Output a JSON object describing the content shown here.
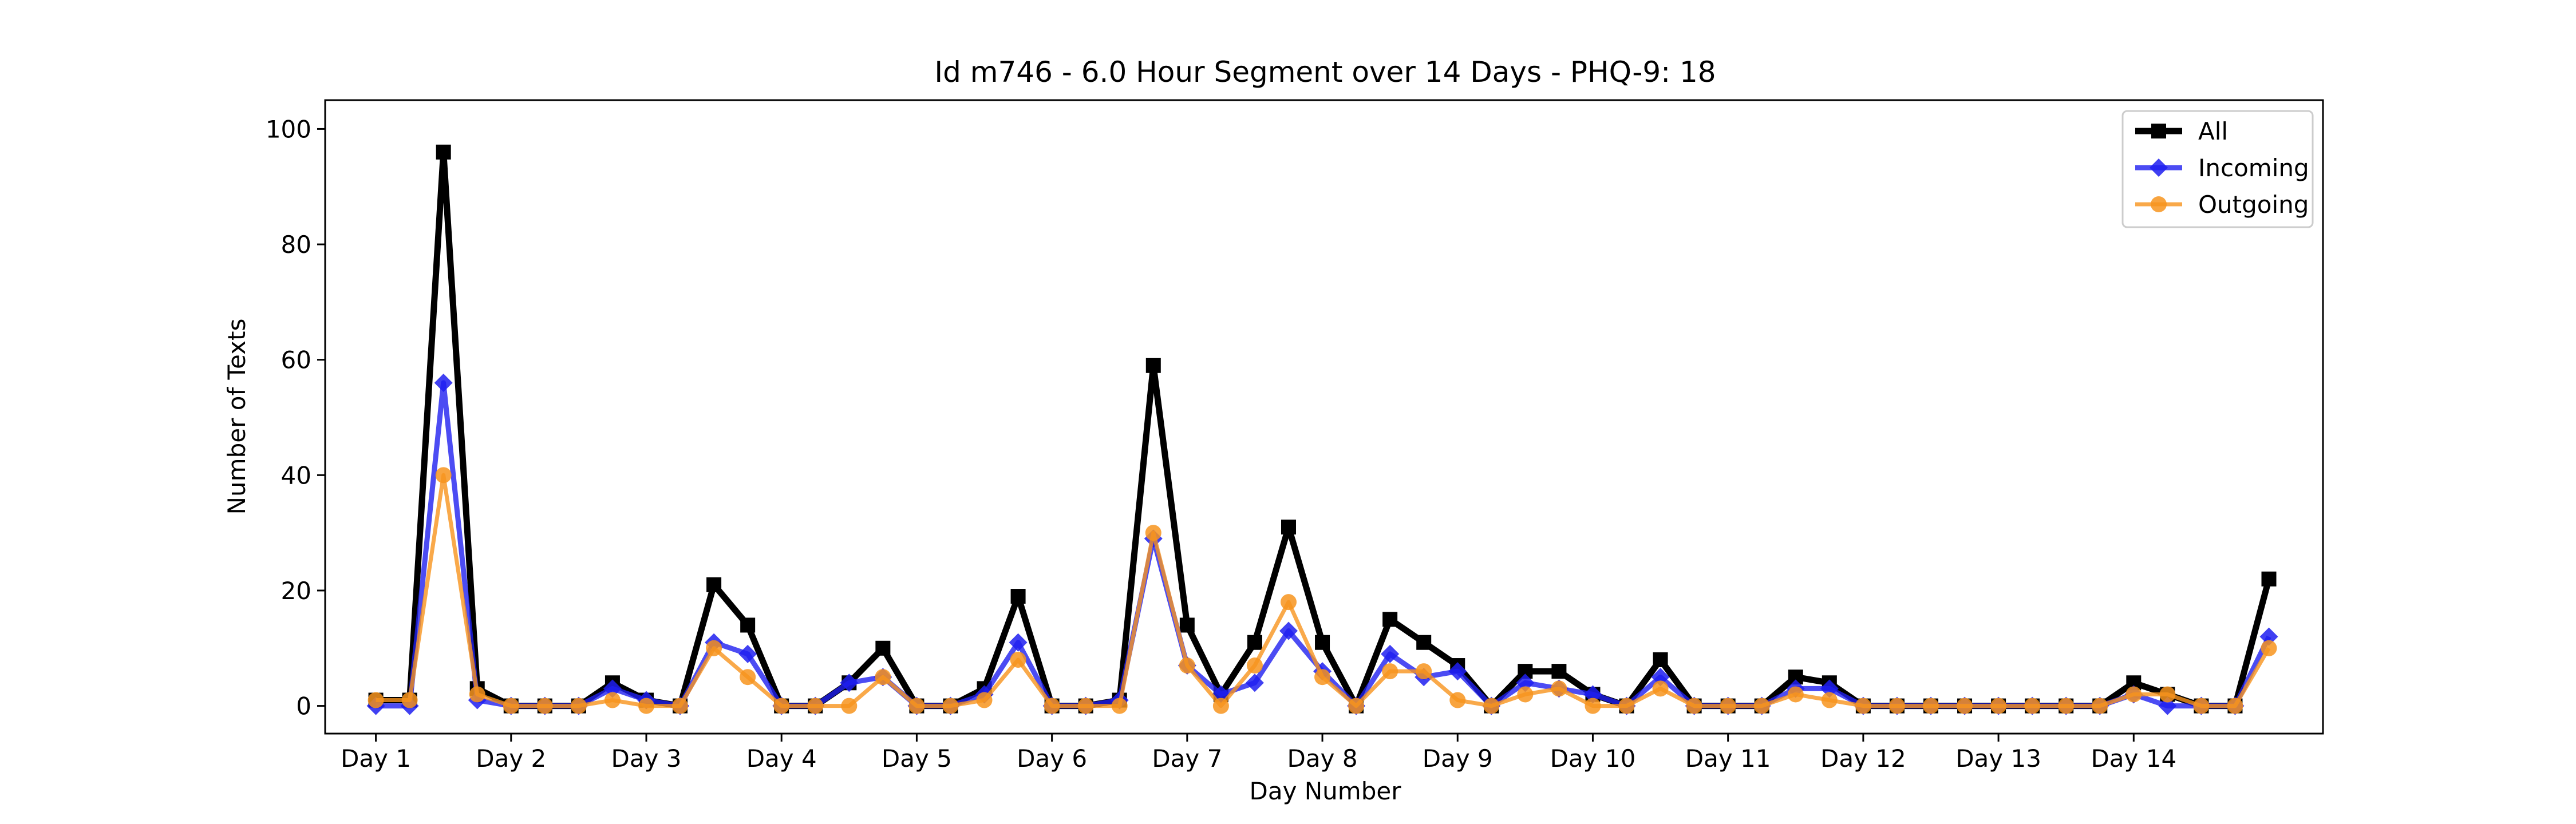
{
  "chart_data": {
    "type": "line",
    "title": "Id m746 - 6.0 Hour Segment over 14 Days - PHQ-9: 18",
    "xlabel": "Day Number",
    "ylabel": "Number of Texts",
    "ylim": [
      -4.8,
      105
    ],
    "xlim": [
      -1.5,
      57.6
    ],
    "yticks": [
      0,
      20,
      40,
      60,
      80,
      100
    ],
    "xtick_positions": [
      0,
      4,
      8,
      12,
      16,
      20,
      24,
      28,
      32,
      36,
      40,
      44,
      48,
      52
    ],
    "xtick_labels": [
      "Day 1",
      "Day 2",
      "Day 3",
      "Day 4",
      "Day 5",
      "Day 6",
      "Day 7",
      "Day 8",
      "Day 9",
      "Day 10",
      "Day 11",
      "Day 12",
      "Day 13",
      "Day 14"
    ],
    "legend_position": "top-right",
    "grid": false,
    "series": [
      {
        "name": "All",
        "color": "#000000",
        "marker": "square",
        "values": [
          1,
          1,
          96,
          3,
          0,
          0,
          0,
          4,
          1,
          0,
          21,
          14,
          0,
          0,
          4,
          10,
          0,
          0,
          3,
          19,
          0,
          0,
          1,
          59,
          14,
          2,
          11,
          31,
          11,
          0,
          15,
          11,
          7,
          0,
          6,
          6,
          2,
          0,
          8,
          0,
          0,
          0,
          5,
          4,
          0,
          0,
          0,
          0,
          0,
          0,
          0,
          0,
          4,
          2,
          0,
          0,
          22
        ]
      },
      {
        "name": "Incoming",
        "color": "#1f1ff0",
        "marker": "diamond",
        "values": [
          0,
          0,
          56,
          1,
          0,
          0,
          0,
          3,
          1,
          0,
          11,
          9,
          0,
          0,
          4,
          5,
          0,
          0,
          2,
          11,
          0,
          0,
          1,
          29,
          7,
          2,
          4,
          13,
          6,
          0,
          9,
          5,
          6,
          0,
          4,
          3,
          2,
          0,
          5,
          0,
          0,
          0,
          3,
          3,
          0,
          0,
          0,
          0,
          0,
          0,
          0,
          0,
          2,
          0,
          0,
          0,
          12
        ]
      },
      {
        "name": "Outgoing",
        "color": "#f7941d",
        "marker": "circle",
        "values": [
          1,
          1,
          40,
          2,
          0,
          0,
          0,
          1,
          0,
          0,
          10,
          5,
          0,
          0,
          0,
          5,
          0,
          0,
          1,
          8,
          0,
          0,
          0,
          30,
          7,
          0,
          7,
          18,
          5,
          0,
          6,
          6,
          1,
          0,
          2,
          3,
          0,
          0,
          3,
          0,
          0,
          0,
          2,
          1,
          0,
          0,
          0,
          0,
          0,
          0,
          0,
          0,
          2,
          2,
          0,
          0,
          10
        ]
      }
    ]
  }
}
